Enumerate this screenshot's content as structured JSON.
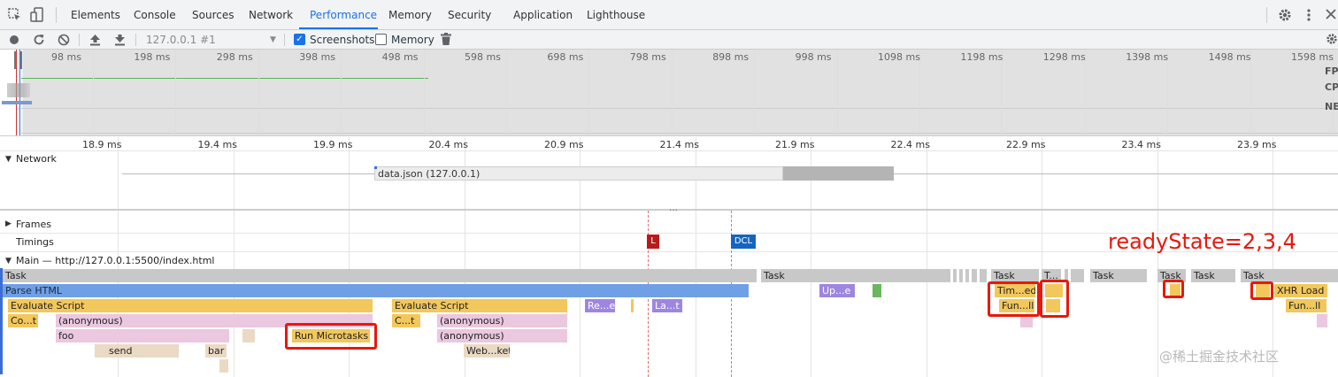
{
  "tabs": {
    "elements": "Elements",
    "console": "Console",
    "sources": "Sources",
    "network": "Network",
    "performance": "Performance",
    "memory": "Memory",
    "security": "Security",
    "application": "Application",
    "lighthouse": "Lighthouse"
  },
  "toolbar": {
    "profile_select": "127.0.0.1 #1",
    "screenshots_label": "Screenshots",
    "screenshots_checked": true,
    "memory_label": "Memory",
    "memory_checked": false
  },
  "overview": {
    "ticks": [
      "98 ms",
      "198 ms",
      "298 ms",
      "398 ms",
      "498 ms",
      "598 ms",
      "698 ms",
      "798 ms",
      "898 ms",
      "998 ms",
      "1098 ms",
      "1198 ms",
      "1298 ms",
      "1398 ms",
      "1498 ms",
      "1598 ms"
    ],
    "labels": [
      "FP",
      "CP",
      "NE"
    ]
  },
  "ruler": {
    "ticks": [
      "18.9 ms",
      "19.4 ms",
      "19.9 ms",
      "20.4 ms",
      "20.9 ms",
      "21.4 ms",
      "21.9 ms",
      "22.4 ms",
      "22.9 ms",
      "23.4 ms",
      "23.9 ms"
    ]
  },
  "network": {
    "header": "Network",
    "request": "data.json (127.0.0.1)"
  },
  "tracks": {
    "frames": "Frames",
    "timings": "Timings",
    "main": "Main — http://127.0.0.1:5500/index.html",
    "marker_l": "L",
    "marker_dcl": "DCL"
  },
  "flame": {
    "task": "Task",
    "task_short": "T...",
    "parse_html": "Parse HTML",
    "update": "Up...e",
    "timer_fired": "Tim...ed",
    "xhr_load": "XHR Load",
    "evaluate_script": "Evaluate Script",
    "recalc": "Re...e",
    "layout": "La...t",
    "function_call": "Fun...ll",
    "compile": "Co...t",
    "compile2": "C...t",
    "anonymous": "(anonymous)",
    "foo": "foo",
    "run_microtasks": "Run Microtasks",
    "send": "send",
    "bar": "bar",
    "web_socket": "Web...ket"
  },
  "annotation": "readyState=2,3,4",
  "watermark": "@稀土掘金技术社区",
  "colors": {
    "accent": "#1a73e8",
    "task": "#c8c8c8",
    "parse_html": "#6fa0e5",
    "scripting": "#f2c75c",
    "anonymous": "#ebc7e0",
    "rendering": "#9e86e0",
    "highlight": "#e8180c"
  }
}
